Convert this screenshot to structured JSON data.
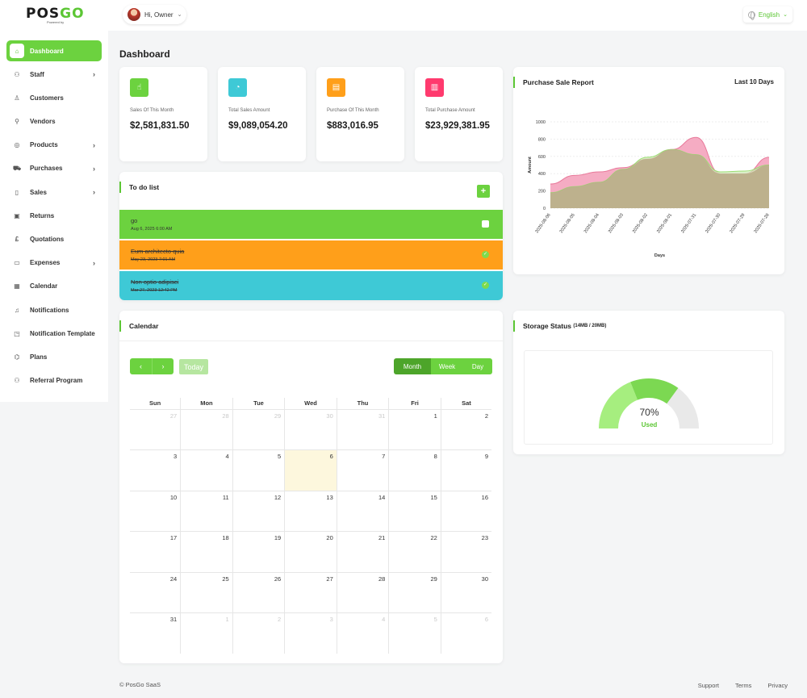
{
  "brand": {
    "name_a": "POS",
    "name_b": "GO",
    "tagline": "Powered by"
  },
  "header": {
    "greeting": "Hi, Owner",
    "language": "English"
  },
  "sidebar": {
    "items": [
      {
        "label": "Dashboard",
        "icon": "home-icon",
        "arrow": false,
        "active": true
      },
      {
        "label": "Staff",
        "icon": "users-icon",
        "arrow": true
      },
      {
        "label": "Customers",
        "icon": "user-icon",
        "arrow": false
      },
      {
        "label": "Vendors",
        "icon": "user-plus-icon",
        "arrow": false
      },
      {
        "label": "Products",
        "icon": "box-icon",
        "arrow": true
      },
      {
        "label": "Purchases",
        "icon": "cart-icon",
        "arrow": true
      },
      {
        "label": "Sales",
        "icon": "book-icon",
        "arrow": true
      },
      {
        "label": "Returns",
        "icon": "return-icon",
        "arrow": false
      },
      {
        "label": "Quotations",
        "icon": "pound-icon",
        "arrow": false
      },
      {
        "label": "Expenses",
        "icon": "wallet-icon",
        "arrow": true
      },
      {
        "label": "Calendar",
        "icon": "calendar-icon",
        "arrow": false
      },
      {
        "label": "Notifications",
        "icon": "bell-icon",
        "arrow": false
      },
      {
        "label": "Notification Template",
        "icon": "template-icon",
        "arrow": false
      },
      {
        "label": "Plans",
        "icon": "plans-icon",
        "arrow": false
      },
      {
        "label": "Referral Program",
        "icon": "referral-icon",
        "arrow": false
      }
    ]
  },
  "page": {
    "title": "Dashboard"
  },
  "stats": [
    {
      "label": "Sales Of This Month",
      "value": "$2,581,831.50",
      "color": "#6cd23f",
      "icon": "hand-icon",
      "glyph": "☝"
    },
    {
      "label": "Total Sales Amount",
      "value": "$9,089,054.20",
      "color": "#3ec9d6",
      "icon": "pie-chart-icon",
      "glyph": "◔"
    },
    {
      "label": "Purchase Of This Month",
      "value": "$883,016.95",
      "color": "#ff9f1a",
      "icon": "receipt-icon",
      "glyph": "▤"
    },
    {
      "label": "Total Purchase Amount",
      "value": "$23,929,381.95",
      "color": "#ff3a6e",
      "icon": "bar-chart-icon",
      "glyph": "▥"
    }
  ],
  "todo": {
    "title": "To do list",
    "items": [
      {
        "title": "go",
        "date": "Aug 6, 2025 6:00 AM",
        "color": "#6cd23f",
        "done": false
      },
      {
        "title": "Eum architecto quia",
        "date": "May 23, 2023 7:01 AM",
        "color": "#ff9f1a",
        "done": true
      },
      {
        "title": "Non optio adipisci",
        "date": "Mar 27, 2023 12:42 PM",
        "color": "#3ec9d6",
        "done": true
      }
    ]
  },
  "report": {
    "title": "Purchase Sale Report",
    "range": "Last 10 Days"
  },
  "chart_data": {
    "type": "area",
    "title": "Purchase Sale Report",
    "xlabel": "Days",
    "ylabel": "Amount",
    "ylim": [
      0,
      1000
    ],
    "yticks": [
      0,
      200,
      400,
      600,
      800,
      1000
    ],
    "categories": [
      "2025-08-06",
      "2025-08-05",
      "2025-08-04",
      "2025-08-03",
      "2025-08-02",
      "2025-08-01",
      "2025-07-31",
      "2025-07-30",
      "2025-07-29",
      "2025-07-28"
    ],
    "series": [
      {
        "values": [
          280,
          380,
          420,
          470,
          570,
          680,
          820,
          400,
          400,
          590
        ],
        "color": "#e8799a",
        "fill": "#f4a3bd"
      },
      {
        "values": [
          180,
          250,
          300,
          450,
          590,
          680,
          620,
          420,
          430,
          500
        ],
        "color": "#9bdc71",
        "fill": "#cdeeb8"
      }
    ],
    "grid": true,
    "legend": "none"
  },
  "calendar": {
    "title": "Calendar",
    "prev": "‹",
    "next": "›",
    "today_label": "Today",
    "views": [
      "Month",
      "Week",
      "Day"
    ],
    "weekdays": [
      "Sun",
      "Mon",
      "Tue",
      "Wed",
      "Thu",
      "Fri",
      "Sat"
    ],
    "weeks": [
      [
        {
          "d": "27",
          "m": true
        },
        {
          "d": "28",
          "m": true
        },
        {
          "d": "29",
          "m": true
        },
        {
          "d": "30",
          "m": true
        },
        {
          "d": "31",
          "m": true
        },
        {
          "d": "1"
        },
        {
          "d": "2"
        }
      ],
      [
        {
          "d": "3"
        },
        {
          "d": "4"
        },
        {
          "d": "5"
        },
        {
          "d": "6",
          "t": true
        },
        {
          "d": "7"
        },
        {
          "d": "8"
        },
        {
          "d": "9"
        }
      ],
      [
        {
          "d": "10"
        },
        {
          "d": "11"
        },
        {
          "d": "12"
        },
        {
          "d": "13"
        },
        {
          "d": "14"
        },
        {
          "d": "15"
        },
        {
          "d": "16"
        }
      ],
      [
        {
          "d": "17"
        },
        {
          "d": "18"
        },
        {
          "d": "19"
        },
        {
          "d": "20"
        },
        {
          "d": "21"
        },
        {
          "d": "22"
        },
        {
          "d": "23"
        }
      ],
      [
        {
          "d": "24"
        },
        {
          "d": "25"
        },
        {
          "d": "26"
        },
        {
          "d": "27"
        },
        {
          "d": "28"
        },
        {
          "d": "29"
        },
        {
          "d": "30"
        }
      ],
      [
        {
          "d": "31"
        },
        {
          "d": "1",
          "m": true
        },
        {
          "d": "2",
          "m": true
        },
        {
          "d": "3",
          "m": true
        },
        {
          "d": "4",
          "m": true
        },
        {
          "d": "5",
          "m": true
        },
        {
          "d": "6",
          "m": true
        }
      ]
    ]
  },
  "storage": {
    "title": "Storage Status",
    "detail": "(14MB / 20MB)",
    "percent_text": "70%",
    "used_label": "Used",
    "fraction": 0.7
  },
  "footer": {
    "copyright": "© PosGo SaaS",
    "links": [
      "Support",
      "Terms",
      "Privacy"
    ]
  }
}
